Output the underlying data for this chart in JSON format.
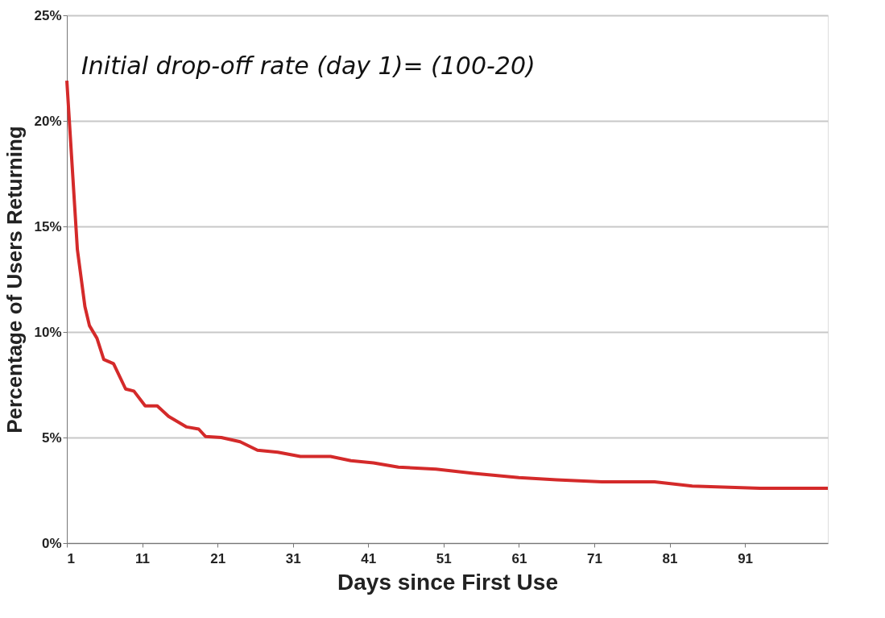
{
  "chart_data": {
    "type": "line",
    "xlabel": "Days since First Use",
    "ylabel": "Percentage of Users Returning",
    "annotations": [
      "Initial drop-off rate (day 1)= (100-20)"
    ],
    "x": [
      1,
      2.4,
      3.4,
      4,
      5,
      5.9,
      7.2,
      8.8,
      9.9,
      11.4,
      13,
      14.5,
      16.9,
      18.5,
      19.4,
      21.5,
      24,
      26.3,
      29,
      32,
      36,
      38.7,
      41.7,
      45,
      50,
      55,
      61,
      66,
      72,
      79,
      84,
      93,
      102
    ],
    "series": [
      {
        "color": "#d42a2a",
        "values": [
          21.9,
          13.9,
          11.2,
          10.3,
          9.7,
          8.7,
          8.5,
          7.3,
          7.2,
          6.5,
          6.5,
          6.0,
          5.5,
          5.4,
          5.05,
          5.0,
          4.8,
          4.4,
          4.3,
          4.1,
          4.1,
          3.9,
          3.8,
          3.6,
          3.5,
          3.3,
          3.1,
          3.0,
          2.9,
          2.9,
          2.7,
          2.6,
          2.6
        ]
      }
    ],
    "xlim": [
      1,
      102
    ],
    "xticks": [
      1,
      11,
      21,
      31,
      41,
      51,
      61,
      71,
      81,
      91
    ],
    "ylim": [
      0,
      25
    ],
    "yticks": [
      {
        "value": 0,
        "label": "0%"
      },
      {
        "value": 5,
        "label": "5%"
      },
      {
        "value": 10,
        "label": "10%"
      },
      {
        "value": 15,
        "label": "15%"
      },
      {
        "value": 20,
        "label": "20%"
      },
      {
        "value": 25,
        "label": "25%"
      }
    ],
    "grid": "y",
    "marker": "none",
    "line_style": "solid"
  }
}
